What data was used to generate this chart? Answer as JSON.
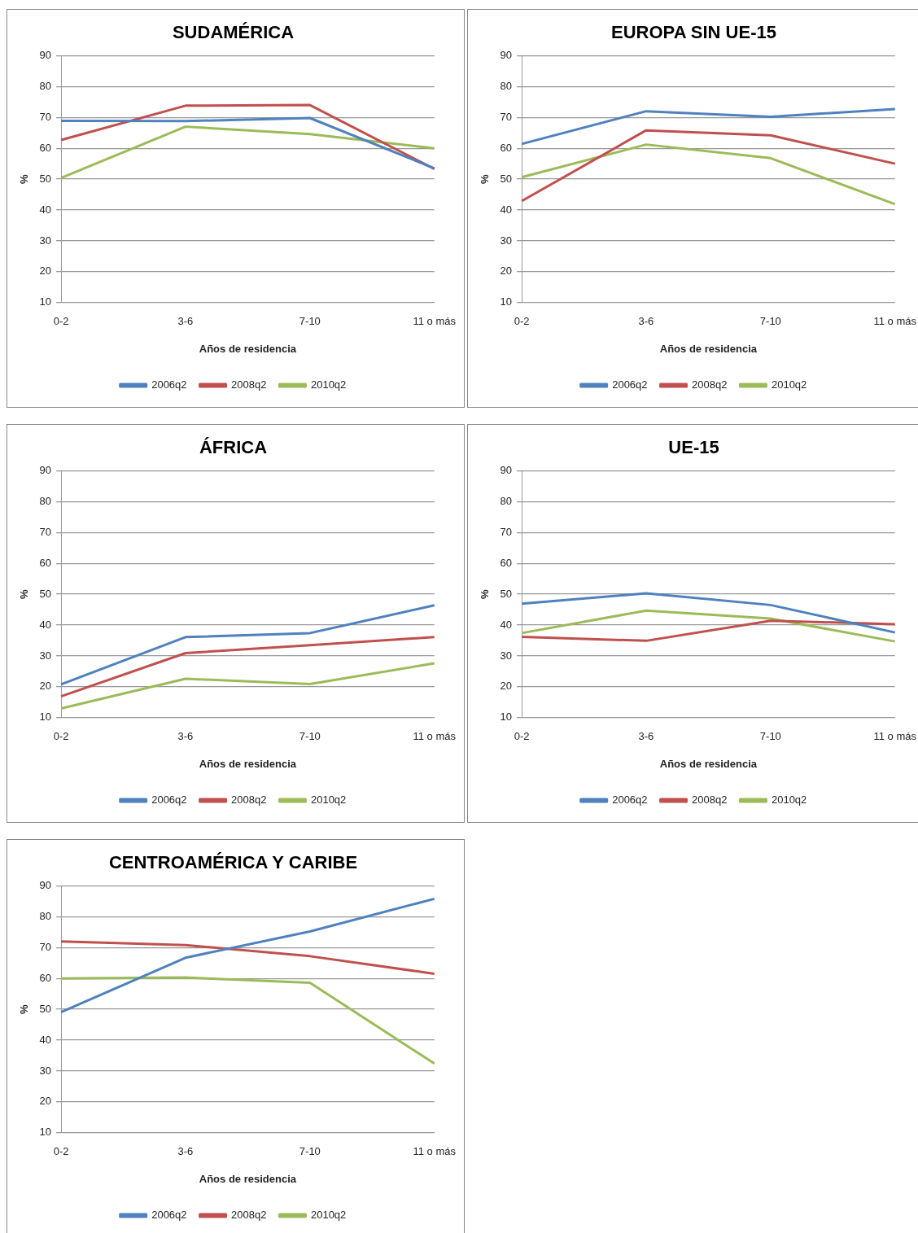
{
  "chart_data": [
    {
      "type": "line",
      "title": "SUDAMÉRICA",
      "xlabel": "Años de residencia",
      "ylabel": "%",
      "categories": [
        "0-2",
        "3-6",
        "7-10",
        "11 o más"
      ],
      "ylim": [
        10,
        90
      ],
      "yticks": [
        10,
        20,
        30,
        40,
        50,
        60,
        70,
        80,
        90
      ],
      "grid": "y",
      "legend": "bottom",
      "marker": "none",
      "series": [
        {
          "name": "2006q2",
          "color": "#4f81bd",
          "values": [
            68.9,
            68.8,
            69.8,
            53.5
          ]
        },
        {
          "name": "2008q2",
          "color": "#c0504d",
          "values": [
            62.7,
            73.8,
            74,
            53.3
          ]
        },
        {
          "name": "2010q2",
          "color": "#9bbb59",
          "values": [
            50.4,
            67,
            64.6,
            60
          ]
        }
      ]
    },
    {
      "type": "line",
      "title": "EUROPA SIN UE-15",
      "xlabel": "Años de residencia",
      "ylabel": "%",
      "categories": [
        "0-2",
        "3-6",
        "7-10",
        "11 o más"
      ],
      "ylim": [
        10,
        90
      ],
      "yticks": [
        10,
        20,
        30,
        40,
        50,
        60,
        70,
        80,
        90
      ],
      "grid": "y",
      "legend": "bottom",
      "marker": "none",
      "series": [
        {
          "name": "2006q2",
          "color": "#4f81bd",
          "values": [
            61.4,
            72,
            70.2,
            72.7
          ]
        },
        {
          "name": "2008q2",
          "color": "#c0504d",
          "values": [
            42.9,
            65.8,
            64.2,
            55
          ]
        },
        {
          "name": "2010q2",
          "color": "#9bbb59",
          "values": [
            50.6,
            61.2,
            56.8,
            41.9
          ]
        }
      ]
    },
    {
      "type": "line",
      "title": "ÁFRICA",
      "xlabel": "Años de residencia",
      "ylabel": "%",
      "categories": [
        "0-2",
        "3-6",
        "7-10",
        "11 o más"
      ],
      "ylim": [
        10,
        90
      ],
      "yticks": [
        10,
        20,
        30,
        40,
        50,
        60,
        70,
        80,
        90
      ],
      "grid": "y",
      "legend": "bottom",
      "marker": "none",
      "series": [
        {
          "name": "2006q2",
          "color": "#4f81bd",
          "values": [
            20.8,
            36.1,
            37.4,
            46.4
          ]
        },
        {
          "name": "2008q2",
          "color": "#c0504d",
          "values": [
            16.9,
            30.9,
            33.5,
            36.1
          ]
        },
        {
          "name": "2010q2",
          "color": "#9bbb59",
          "values": [
            13,
            22.6,
            20.9,
            27.6
          ]
        }
      ]
    },
    {
      "type": "line",
      "title": "UE-15",
      "xlabel": "Años de residencia",
      "ylabel": "%",
      "categories": [
        "0-2",
        "3-6",
        "7-10",
        "11 o más"
      ],
      "ylim": [
        10,
        90
      ],
      "yticks": [
        10,
        20,
        30,
        40,
        50,
        60,
        70,
        80,
        90
      ],
      "grid": "y",
      "legend": "bottom",
      "marker": "none",
      "series": [
        {
          "name": "2006q2",
          "color": "#4f81bd",
          "values": [
            46.9,
            50.3,
            46.5,
            37.6
          ]
        },
        {
          "name": "2008q2",
          "color": "#c0504d",
          "values": [
            36.2,
            34.9,
            41.4,
            40.3
          ]
        },
        {
          "name": "2010q2",
          "color": "#9bbb59",
          "values": [
            37.4,
            44.7,
            42.1,
            34.7
          ]
        }
      ]
    },
    {
      "type": "line",
      "title": "CENTROAMÉRICA Y CARIBE",
      "xlabel": "Años de residencia",
      "ylabel": "%",
      "categories": [
        "0-2",
        "3-6",
        "7-10",
        "11 o más"
      ],
      "ylim": [
        10,
        90
      ],
      "yticks": [
        10,
        20,
        30,
        40,
        50,
        60,
        70,
        80,
        90
      ],
      "grid": "y",
      "legend": "bottom",
      "marker": "none",
      "series": [
        {
          "name": "2006q2",
          "color": "#4f81bd",
          "values": [
            49.1,
            66.7,
            75.2,
            85.8
          ]
        },
        {
          "name": "2008q2",
          "color": "#c0504d",
          "values": [
            72,
            70.8,
            67.2,
            61.5
          ]
        },
        {
          "name": "2010q2",
          "color": "#9bbb59",
          "values": [
            60,
            60.3,
            58.6,
            32.4
          ]
        }
      ]
    }
  ]
}
